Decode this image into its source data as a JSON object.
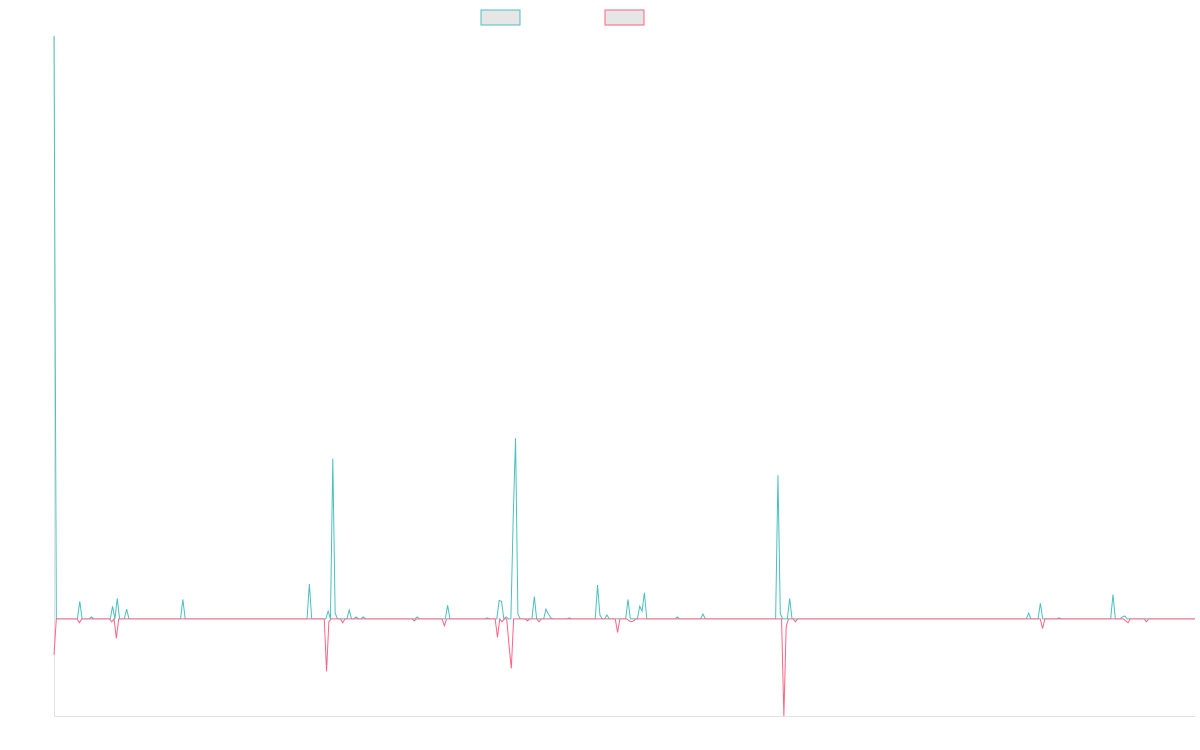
{
  "chart_data": {
    "type": "line",
    "title": "",
    "xlabel": "",
    "ylabel": "",
    "ylim": [
      -100,
      600
    ],
    "grid": false,
    "legend_placement": "top-center",
    "series": [
      {
        "color": "#4bc0c0",
        "values": [
          600,
          0,
          0,
          0,
          0,
          0,
          0,
          0,
          0,
          0,
          0,
          18,
          0,
          0,
          0,
          0,
          2,
          0,
          0,
          0,
          0,
          0,
          0,
          0,
          0,
          13,
          0,
          21,
          0,
          0,
          0,
          10,
          0,
          0,
          0,
          0,
          0,
          0,
          0,
          0,
          0,
          0,
          0,
          0,
          0,
          0,
          0,
          0,
          0,
          0,
          0,
          0,
          0,
          0,
          0,
          20,
          0,
          0,
          0,
          0,
          0,
          0,
          0,
          0,
          0,
          0,
          0,
          0,
          0,
          0,
          0,
          0,
          0,
          0,
          0,
          0,
          0,
          0,
          0,
          0,
          0,
          0,
          0,
          0,
          0,
          0,
          0,
          0,
          0,
          0,
          0,
          0,
          0,
          0,
          0,
          0,
          0,
          0,
          0,
          0,
          0,
          0,
          0,
          0,
          0,
          0,
          0,
          0,
          0,
          36,
          0,
          0,
          0,
          0,
          0,
          0,
          0,
          8,
          0,
          165,
          6,
          0,
          0,
          0,
          0,
          0,
          9,
          0,
          0,
          2,
          0,
          0,
          2,
          0,
          0,
          0,
          0,
          0,
          0,
          0,
          0,
          0,
          0,
          0,
          0,
          0,
          0,
          0,
          0,
          0,
          0,
          0,
          0,
          0,
          0,
          2,
          0,
          0,
          0,
          0,
          0,
          0,
          0,
          0,
          0,
          0,
          0,
          0,
          14,
          0,
          0,
          0,
          0,
          0,
          0,
          0,
          0,
          0,
          0,
          0,
          0,
          0,
          0,
          0,
          0,
          1,
          0,
          0,
          0,
          0,
          19,
          18,
          0,
          2,
          0,
          0,
          104,
          186,
          5,
          0,
          0,
          0,
          0,
          0,
          0,
          23,
          0,
          0,
          0,
          0,
          10,
          5,
          1,
          0,
          0,
          0,
          0,
          0,
          0,
          0,
          1,
          0,
          0,
          0,
          0,
          0,
          0,
          0,
          0,
          0,
          0,
          0,
          35,
          4,
          0,
          0,
          4,
          0,
          0,
          0,
          0,
          0,
          0,
          0,
          0,
          20,
          0,
          0,
          0,
          0,
          13,
          8,
          27,
          0,
          0,
          0,
          0,
          0,
          0,
          0,
          0,
          0,
          0,
          0,
          0,
          0,
          2,
          0,
          0,
          0,
          0,
          0,
          0,
          0,
          0,
          0,
          0,
          5,
          0,
          0,
          0,
          0,
          0,
          0,
          0,
          0,
          0,
          0,
          0,
          0,
          0,
          0,
          0,
          0,
          0,
          0,
          0,
          0,
          0,
          0,
          0,
          0,
          0,
          0,
          0,
          0,
          0,
          0,
          0,
          148,
          5,
          0,
          0,
          0,
          21,
          0,
          0,
          0,
          0,
          0,
          0,
          0,
          0,
          0,
          0,
          0,
          0,
          0,
          0,
          0,
          0,
          0,
          0,
          0,
          0,
          0,
          0,
          0,
          0,
          0,
          0,
          0,
          0,
          0,
          0,
          0,
          0,
          0,
          0,
          0,
          0,
          0,
          0,
          0,
          0,
          0,
          0,
          0,
          0,
          0,
          0,
          0,
          0,
          0,
          0,
          0,
          0,
          0,
          0,
          0,
          0,
          0,
          0,
          0,
          0,
          0,
          0,
          0,
          0,
          0,
          0,
          0,
          0,
          0,
          0,
          0,
          0,
          0,
          0,
          0,
          0,
          0,
          0,
          0,
          0,
          0,
          0,
          0,
          0,
          0,
          0,
          0,
          0,
          0,
          0,
          0,
          0,
          0,
          0,
          0,
          0,
          0,
          0,
          0,
          0,
          0,
          6,
          0,
          0,
          0,
          0,
          16,
          0,
          0,
          0,
          0,
          0,
          0,
          0,
          1,
          0,
          0,
          0,
          0,
          0,
          0,
          0,
          0,
          0,
          0,
          0,
          0,
          0,
          0,
          0,
          0,
          0,
          0,
          0,
          0,
          0,
          0,
          25,
          0,
          0,
          0,
          2,
          3,
          0,
          0,
          0,
          0,
          0,
          0,
          0,
          0,
          0,
          0,
          0,
          0,
          0,
          0,
          0,
          0,
          0,
          0,
          0,
          0,
          0,
          0,
          0,
          0,
          0,
          0,
          0,
          0,
          0,
          0
        ]
      },
      {
        "color": "#ff6384",
        "values": [
          -37,
          0,
          0,
          0,
          0,
          0,
          0,
          0,
          0,
          0,
          0,
          -4,
          0,
          0,
          0,
          0,
          0,
          0,
          0,
          0,
          0,
          0,
          0,
          0,
          0,
          -3,
          0,
          -20,
          0,
          0,
          0,
          0,
          0,
          0,
          0,
          0,
          0,
          0,
          0,
          0,
          0,
          0,
          0,
          0,
          0,
          0,
          0,
          0,
          0,
          0,
          0,
          0,
          0,
          0,
          0,
          0,
          0,
          0,
          0,
          0,
          0,
          0,
          0,
          0,
          0,
          0,
          0,
          0,
          0,
          0,
          0,
          0,
          0,
          0,
          0,
          0,
          0,
          0,
          0,
          0,
          0,
          0,
          0,
          0,
          0,
          0,
          0,
          0,
          0,
          0,
          0,
          0,
          0,
          0,
          0,
          0,
          0,
          0,
          0,
          0,
          0,
          0,
          0,
          0,
          0,
          0,
          0,
          0,
          0,
          0,
          0,
          0,
          0,
          0,
          0,
          0,
          0,
          0,
          -54,
          -3,
          0,
          0,
          0,
          0,
          0,
          -4,
          0,
          0,
          0,
          0,
          0,
          0,
          0,
          0,
          0,
          0,
          0,
          0,
          0,
          0,
          0,
          0,
          0,
          0,
          0,
          0,
          0,
          0,
          0,
          0,
          0,
          0,
          0,
          0,
          0,
          0,
          -2,
          0,
          0,
          0,
          0,
          0,
          0,
          0,
          0,
          0,
          0,
          0,
          0,
          -7,
          0,
          0,
          0,
          0,
          0,
          0,
          0,
          0,
          0,
          0,
          0,
          0,
          0,
          0,
          0,
          0,
          0,
          0,
          0,
          0,
          0,
          0,
          -19,
          0,
          -3,
          0,
          0,
          -27,
          -51,
          0,
          0,
          0,
          0,
          0,
          0,
          -2,
          0,
          0,
          0,
          0,
          -3,
          0,
          0,
          0,
          0,
          0,
          0,
          0,
          0,
          0,
          0,
          0,
          0,
          0,
          0,
          0,
          0,
          0,
          0,
          0,
          0,
          0,
          0,
          0,
          0,
          0,
          0,
          0,
          0,
          0,
          0,
          0,
          0,
          0,
          -14,
          0,
          0,
          0,
          0,
          -2,
          -3,
          -2,
          0,
          0,
          0,
          0,
          0,
          0,
          0,
          0,
          0,
          0,
          0,
          0,
          0,
          0,
          0,
          0,
          0,
          0,
          0,
          0,
          0,
          0,
          0,
          0,
          0,
          0,
          0,
          0,
          0,
          0,
          0,
          0,
          0,
          0,
          0,
          0,
          0,
          0,
          0,
          0,
          0,
          0,
          0,
          0,
          0,
          0,
          0,
          0,
          0,
          0,
          0,
          0,
          0,
          0,
          0,
          0,
          0,
          0,
          0,
          0,
          0,
          0,
          0,
          0,
          -100,
          -8,
          0,
          0,
          0,
          -3,
          0,
          0,
          0,
          0,
          0,
          0,
          0,
          0,
          0,
          0,
          0,
          0,
          0,
          0,
          0,
          0,
          0,
          0,
          0,
          0,
          0,
          0,
          0,
          0,
          0,
          0,
          0,
          0,
          0,
          0,
          0,
          0,
          0,
          0,
          0,
          0,
          0,
          0,
          0,
          0,
          0,
          0,
          0,
          0,
          0,
          0,
          0,
          0,
          0,
          0,
          0,
          0,
          0,
          0,
          0,
          0,
          0,
          0,
          0,
          0,
          0,
          0,
          0,
          0,
          0,
          0,
          0,
          0,
          0,
          0,
          0,
          0,
          0,
          0,
          0,
          0,
          0,
          0,
          0,
          0,
          0,
          0,
          0,
          0,
          0,
          0,
          0,
          0,
          0,
          0,
          0,
          0,
          0,
          0,
          0,
          0,
          0,
          0,
          0,
          0,
          0,
          0,
          0,
          0,
          0,
          0,
          -10,
          0,
          0,
          0,
          0,
          0,
          0,
          0,
          0,
          0,
          0,
          0,
          0,
          0,
          0,
          0,
          0,
          0,
          0,
          0,
          0,
          0,
          0,
          0,
          0,
          0,
          0,
          0,
          0,
          0,
          0,
          0,
          0,
          0,
          0,
          0,
          -2,
          -4,
          0,
          0,
          0,
          0,
          0,
          0,
          0,
          -3,
          0,
          0,
          0,
          0,
          0,
          0,
          0,
          0,
          0,
          0,
          0,
          0,
          0,
          0,
          0,
          0,
          0,
          0,
          0,
          0,
          0
        ]
      }
    ]
  }
}
